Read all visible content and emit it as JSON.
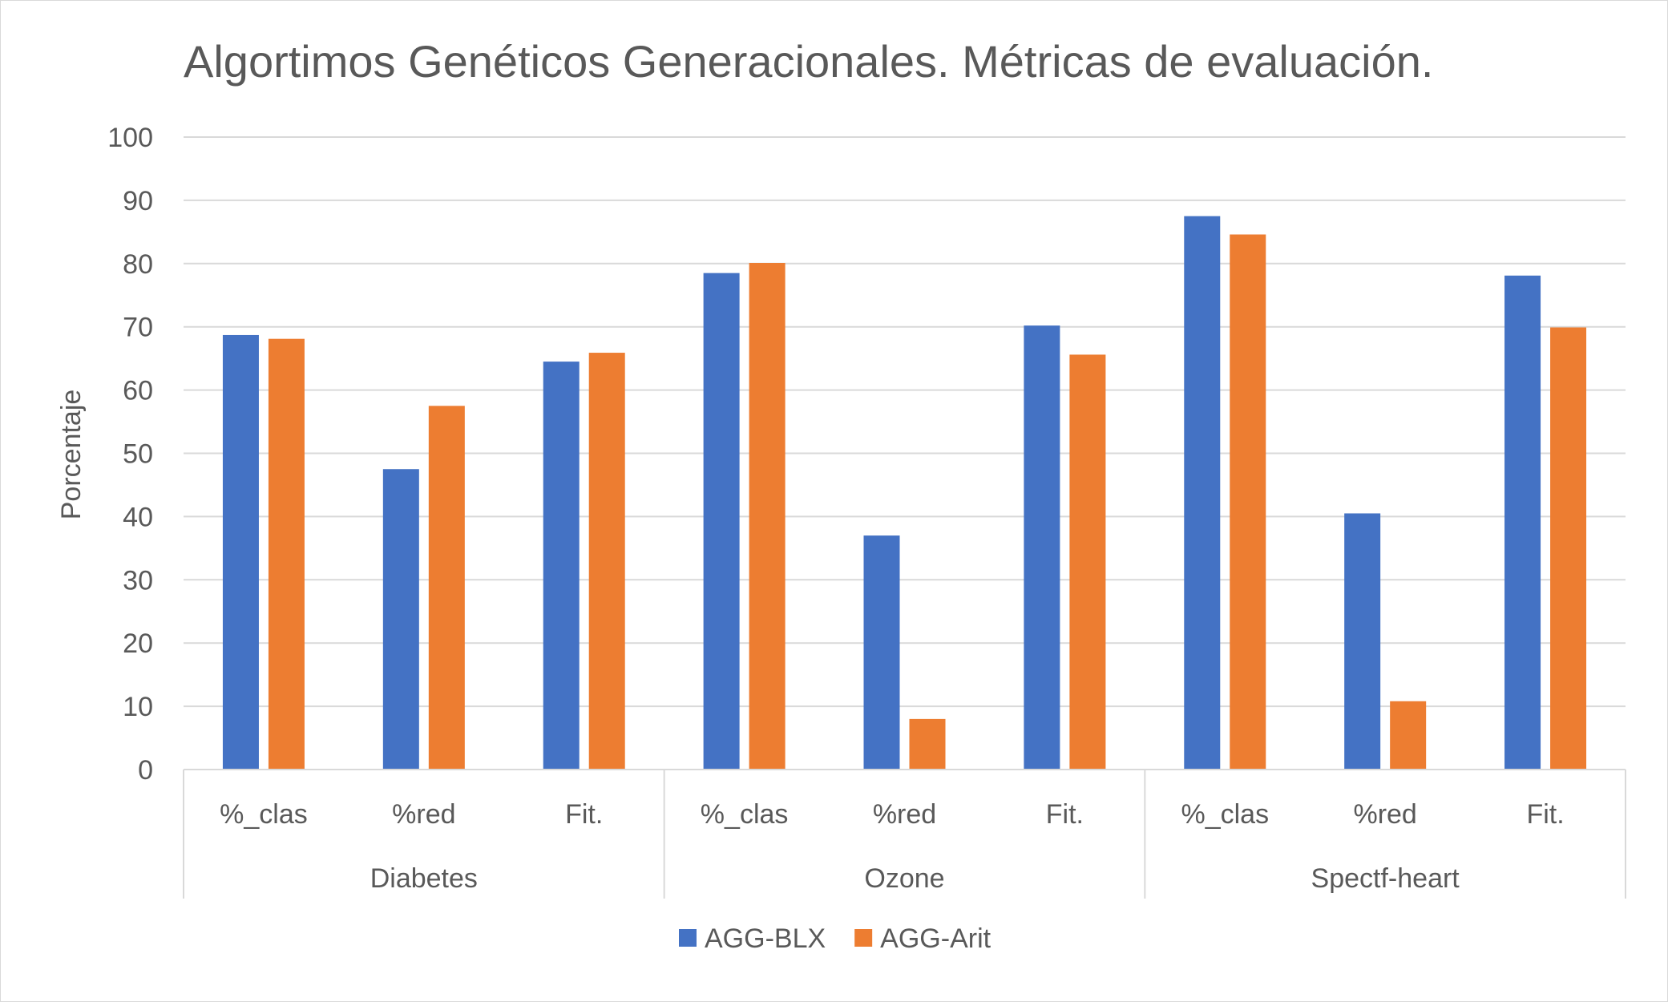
{
  "chart_data": {
    "type": "bar",
    "title": "Algortimos Genéticos Generacionales. Métricas de evaluación.",
    "xlabel": "",
    "ylabel": "Porcentaje",
    "ylim": [
      0,
      100
    ],
    "yticks": [
      0,
      10,
      20,
      30,
      40,
      50,
      60,
      70,
      80,
      90,
      100
    ],
    "grid": true,
    "legend_position": "bottom",
    "groups": [
      {
        "name": "Diabetes",
        "categories": [
          "%_clas",
          "%red",
          "Fit."
        ]
      },
      {
        "name": "Ozone",
        "categories": [
          "%_clas",
          "%red",
          "Fit."
        ]
      },
      {
        "name": "Spectf-heart",
        "categories": [
          "%_clas",
          "%red",
          "Fit."
        ]
      }
    ],
    "series": [
      {
        "name": "AGG-BLX",
        "color": "#4472C4",
        "values": [
          68.7,
          47.5,
          64.5,
          78.5,
          37.0,
          70.2,
          87.5,
          40.5,
          78.1
        ]
      },
      {
        "name": "AGG-Arit",
        "color": "#ED7D31",
        "values": [
          68.1,
          57.5,
          65.9,
          80.1,
          8.0,
          65.6,
          84.6,
          10.8,
          69.9
        ]
      }
    ]
  }
}
